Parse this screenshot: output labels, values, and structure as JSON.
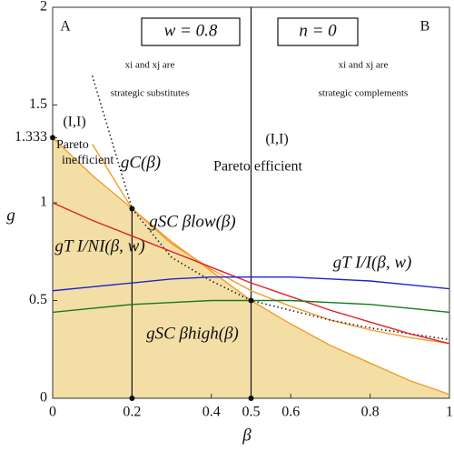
{
  "chart_data": {
    "type": "line",
    "xlabel": "β",
    "ylabel": "g",
    "xlim": [
      0,
      1
    ],
    "ylim": [
      0,
      2
    ],
    "xticks": [
      0,
      0.2,
      0.4,
      0.5,
      0.6,
      0.8,
      1
    ],
    "yticks": [
      0,
      0.5,
      1,
      1.333,
      1.5,
      2
    ],
    "x": [
      0,
      0.1,
      0.2,
      0.3,
      0.4,
      0.5,
      0.6,
      0.7,
      0.8,
      0.9,
      1
    ],
    "series": [
      {
        "name": "gSC βhigh(β)",
        "color": "#f39c2a",
        "fill": "#f3dfa6",
        "values": [
          1.333,
          1.14,
          0.97,
          0.8,
          0.65,
          0.5,
          0.38,
          0.27,
          0.18,
          0.09,
          0.02
        ]
      },
      {
        "name": "gSC βlow(β)",
        "color": "#f39c2a",
        "values": [
          null,
          1.3,
          0.97,
          0.79,
          0.66,
          0.55,
          0.47,
          0.4,
          0.35,
          0.31,
          0.28
        ]
      },
      {
        "name": "gC(β)",
        "color": "#222222",
        "dash": "dotted",
        "values": [
          null,
          1.65,
          0.97,
          0.72,
          0.6,
          0.5,
          0.45,
          0.4,
          0.36,
          0.33,
          0.3
        ]
      },
      {
        "name": "gT I/NI(β, w)",
        "color": "#e0202a",
        "values": [
          1,
          0.91,
          0.83,
          0.75,
          0.67,
          0.59,
          0.52,
          0.45,
          0.39,
          0.33,
          0.28
        ]
      },
      {
        "name": "gT I/I(β, w)",
        "color": "#2222cc",
        "values": [
          0.55,
          0.57,
          0.59,
          0.61,
          0.62,
          0.62,
          0.62,
          0.61,
          0.6,
          0.58,
          0.56
        ]
      },
      {
        "name": "gSC βhigh(β) ",
        "color": "#1a7a1a",
        "values": [
          0.44,
          0.46,
          0.48,
          0.49,
          0.5,
          0.5,
          0.5,
          0.49,
          0.48,
          0.46,
          0.44
        ]
      }
    ],
    "vlines": [
      {
        "x": 0.2,
        "top": 0.97
      },
      {
        "x": 0.5,
        "top": 2
      }
    ],
    "markers": {
      "x": [
        0,
        0.2,
        0.2,
        0.5,
        0.5
      ],
      "y": [
        1.333,
        0.97,
        0,
        0.5,
        0
      ]
    },
    "annotations": [
      "A",
      "B",
      "w = 0.8",
      "n = 0",
      "xi and xj are",
      "strategic substitutes",
      "xi and xj are",
      "strategic complements",
      "(I,I)",
      "Pareto",
      "inefficient",
      "(I,I)",
      "Pareto efficient",
      "gC(β)",
      "gSC βlow(β)",
      "gT I/NI(β, w)",
      "gT I/I(β, w)",
      "gSC βhigh(β)"
    ]
  }
}
